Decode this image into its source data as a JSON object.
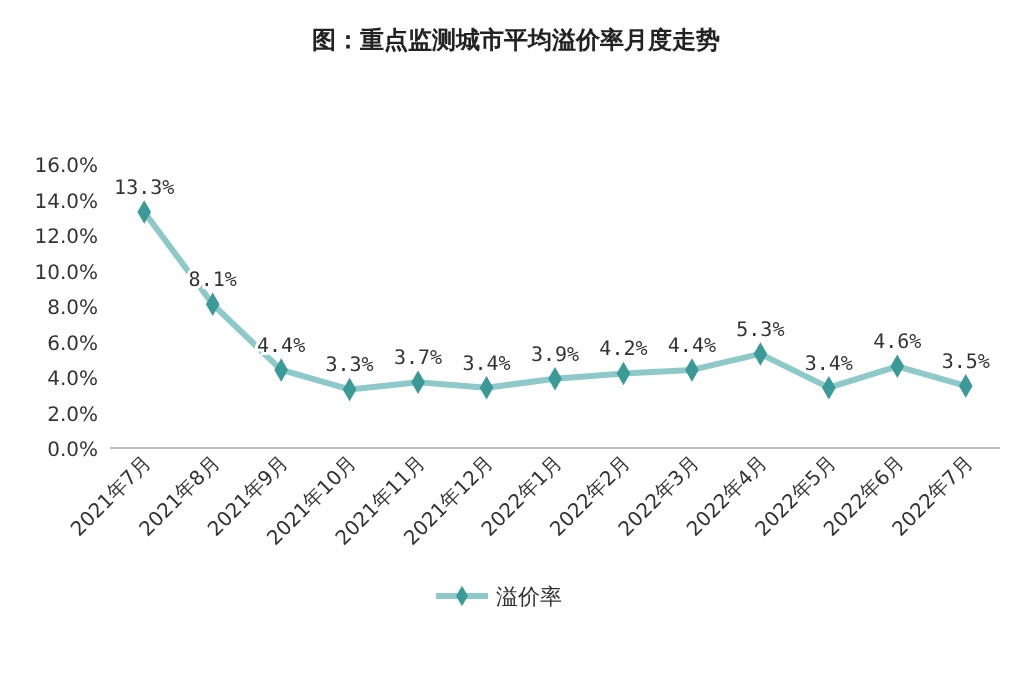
{
  "chart_data": {
    "type": "line",
    "title": "图：重点监测城市平均溢价率月度走势",
    "categories": [
      "2021年7月",
      "2021年8月",
      "2021年9月",
      "2021年10月",
      "2021年11月",
      "2021年12月",
      "2022年1月",
      "2022年2月",
      "2022年3月",
      "2022年4月",
      "2022年5月",
      "2022年6月",
      "2022年7月"
    ],
    "series": [
      {
        "name": "溢价率",
        "color": "#8ec9c9",
        "values": [
          13.3,
          8.1,
          4.4,
          3.3,
          3.7,
          3.4,
          3.9,
          4.2,
          4.4,
          5.3,
          3.4,
          4.6,
          3.5
        ],
        "value_labels": [
          "13.3%",
          "8.1%",
          "4.4%",
          "3.3%",
          "3.7%",
          "3.4%",
          "3.9%",
          "4.2%",
          "4.4%",
          "5.3%",
          "3.4%",
          "4.6%",
          "3.5%"
        ]
      }
    ],
    "ylim": [
      0,
      16
    ],
    "yticks": [
      {
        "value": 0,
        "label": "0.0%"
      },
      {
        "value": 2,
        "label": "2.0%"
      },
      {
        "value": 4,
        "label": "4.0%"
      },
      {
        "value": 6,
        "label": "6.0%"
      },
      {
        "value": 8,
        "label": "8.0%"
      },
      {
        "value": 10,
        "label": "10.0%"
      },
      {
        "value": 12,
        "label": "12.0%"
      },
      {
        "value": 14,
        "label": "14.0%"
      },
      {
        "value": 16,
        "label": "16.0%"
      }
    ],
    "grid": false,
    "legend": "bottom",
    "marker": "diamond",
    "line_style": "solid"
  }
}
